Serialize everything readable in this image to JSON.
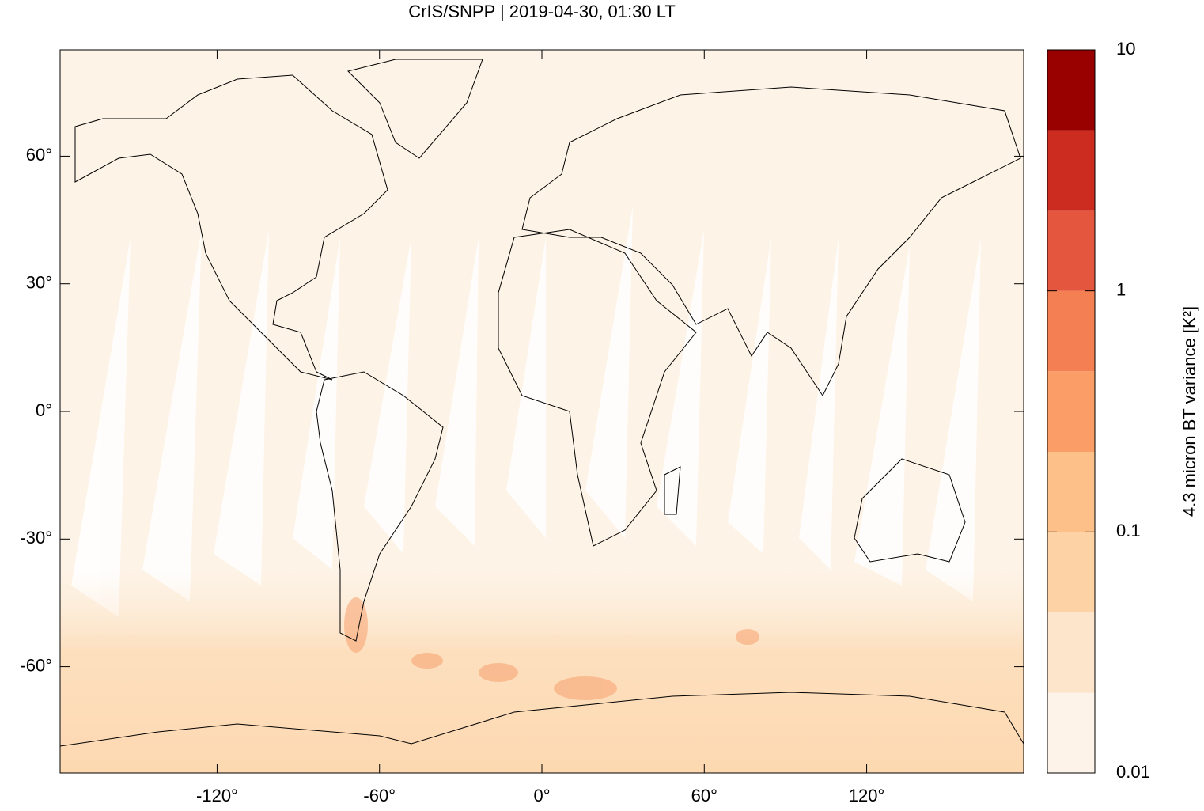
{
  "chart_data": {
    "type": "map",
    "title": "CrIS/SNPP | 2019-04-30, 01:30 LT",
    "xlim": [
      -178,
      178
    ],
    "ylim": [
      -85,
      85
    ],
    "xticks": [
      {
        "value": -120,
        "label": "-120°"
      },
      {
        "value": -60,
        "label": "-60°"
      },
      {
        "value": 0,
        "label": "0°"
      },
      {
        "value": 60,
        "label": "60°"
      },
      {
        "value": 120,
        "label": "120°"
      }
    ],
    "yticks": [
      {
        "value": -60,
        "label": "-60°"
      },
      {
        "value": -30,
        "label": "-30°"
      },
      {
        "value": 0,
        "label": "0°"
      },
      {
        "value": 30,
        "label": "30°"
      },
      {
        "value": 60,
        "label": "60°"
      }
    ],
    "colorbar": {
      "label": "4.3 micron BT variance [K²]",
      "log": true,
      "levels": [
        0.01,
        0.0215,
        0.0464,
        0.1,
        0.215,
        0.464,
        1,
        2.15,
        4.64,
        10
      ],
      "colors": [
        "#fef3e8",
        "#fde5cb",
        "#fdd2a4",
        "#fcc088",
        "#fb9d66",
        "#f47f52",
        "#e4563d",
        "#cc2b1f",
        "#990000"
      ],
      "ticks": [
        0.01,
        0.1,
        1,
        10
      ]
    }
  }
}
